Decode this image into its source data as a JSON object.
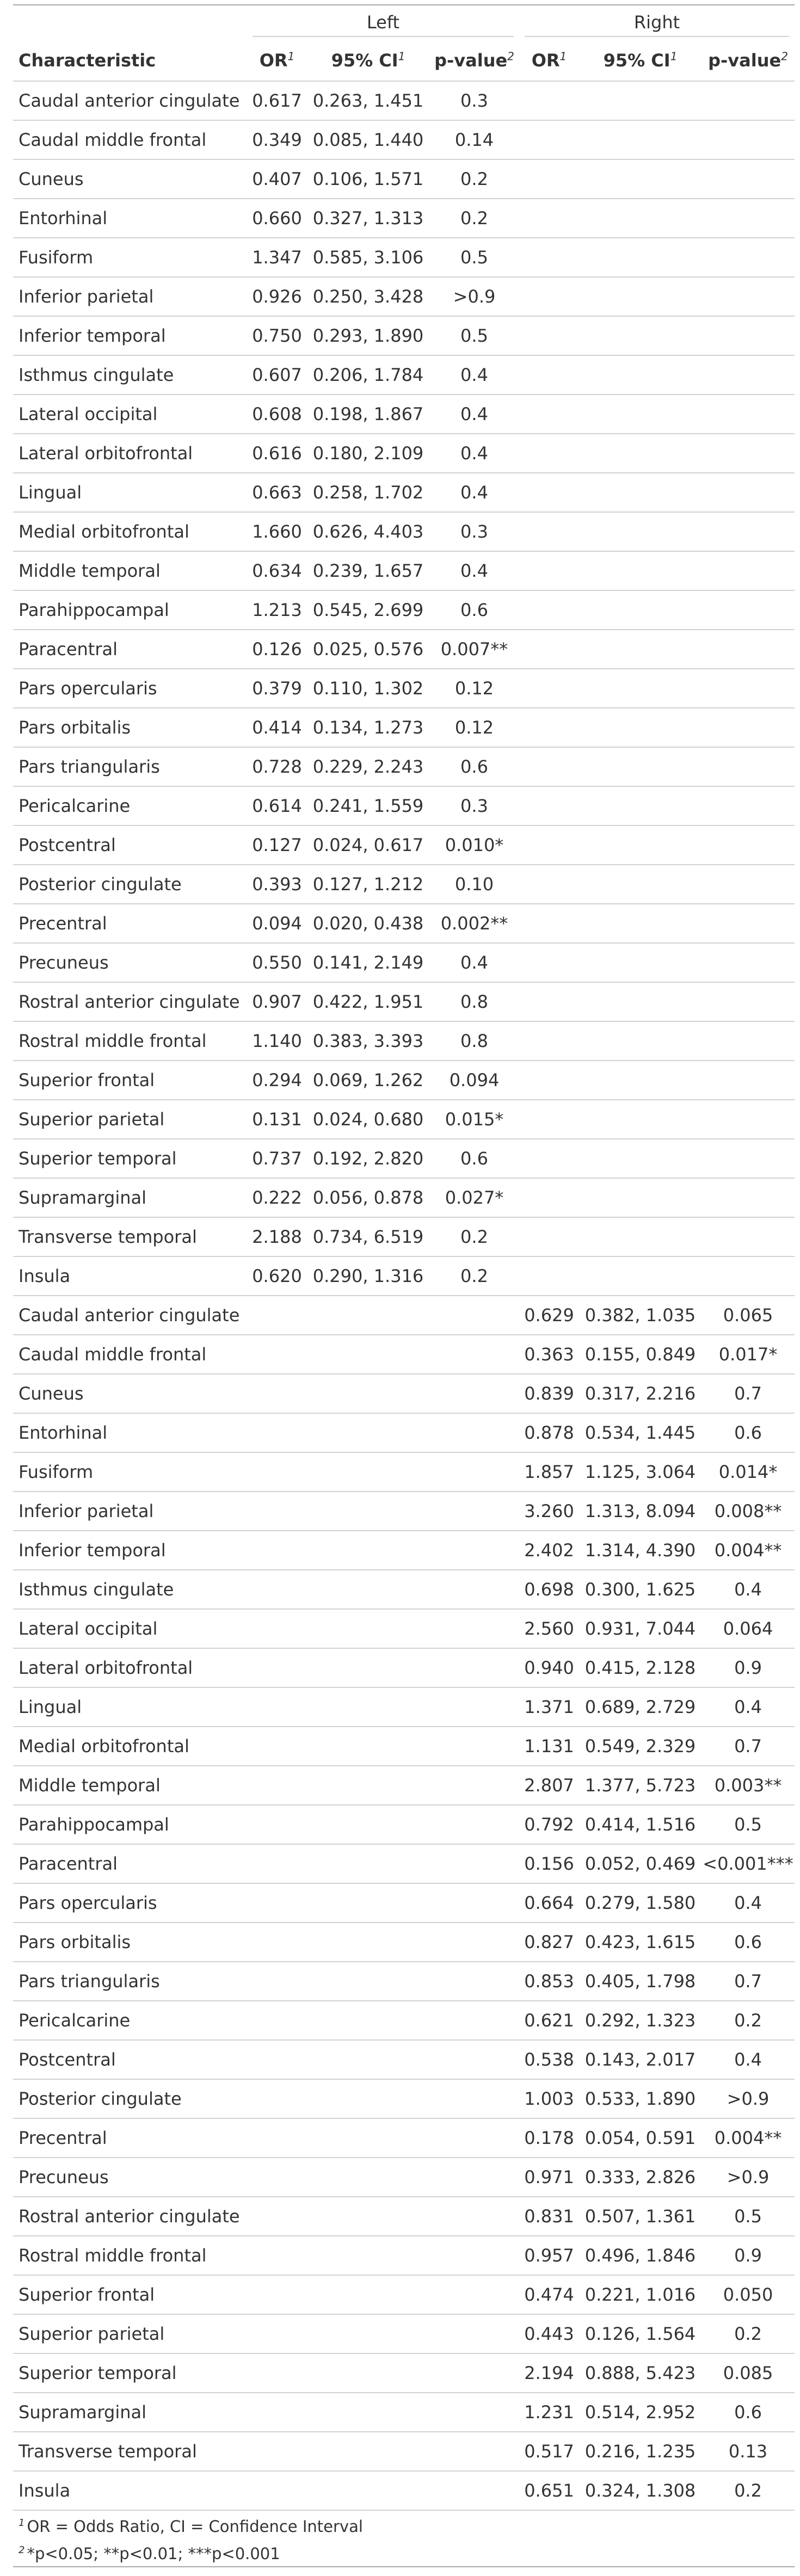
{
  "table": {
    "spanners": {
      "left": "Left",
      "right": "Right"
    },
    "headers": {
      "characteristic": "Characteristic",
      "or": "OR",
      "ci": "95% CI",
      "pvalue": "p-value",
      "or_mark": "1",
      "ci_mark": "1",
      "p_mark": "2"
    },
    "rows": [
      {
        "label": "Caudal anterior cingulate",
        "l_or": "0.617",
        "l_ci": "0.263, 1.451",
        "l_p": "0.3",
        "r_or": "",
        "r_ci": "",
        "r_p": ""
      },
      {
        "label": "Caudal middle frontal",
        "l_or": "0.349",
        "l_ci": "0.085, 1.440",
        "l_p": "0.14",
        "r_or": "",
        "r_ci": "",
        "r_p": ""
      },
      {
        "label": "Cuneus",
        "l_or": "0.407",
        "l_ci": "0.106, 1.571",
        "l_p": "0.2",
        "r_or": "",
        "r_ci": "",
        "r_p": ""
      },
      {
        "label": "Entorhinal",
        "l_or": "0.660",
        "l_ci": "0.327, 1.313",
        "l_p": "0.2",
        "r_or": "",
        "r_ci": "",
        "r_p": ""
      },
      {
        "label": "Fusiform",
        "l_or": "1.347",
        "l_ci": "0.585, 3.106",
        "l_p": "0.5",
        "r_or": "",
        "r_ci": "",
        "r_p": ""
      },
      {
        "label": "Inferior parietal",
        "l_or": "0.926",
        "l_ci": "0.250, 3.428",
        "l_p": ">0.9",
        "r_or": "",
        "r_ci": "",
        "r_p": ""
      },
      {
        "label": "Inferior temporal",
        "l_or": "0.750",
        "l_ci": "0.293, 1.890",
        "l_p": "0.5",
        "r_or": "",
        "r_ci": "",
        "r_p": ""
      },
      {
        "label": "Isthmus cingulate",
        "l_or": "0.607",
        "l_ci": "0.206, 1.784",
        "l_p": "0.4",
        "r_or": "",
        "r_ci": "",
        "r_p": ""
      },
      {
        "label": "Lateral occipital",
        "l_or": "0.608",
        "l_ci": "0.198, 1.867",
        "l_p": "0.4",
        "r_or": "",
        "r_ci": "",
        "r_p": ""
      },
      {
        "label": "Lateral orbitofrontal",
        "l_or": "0.616",
        "l_ci": "0.180, 2.109",
        "l_p": "0.4",
        "r_or": "",
        "r_ci": "",
        "r_p": ""
      },
      {
        "label": "Lingual",
        "l_or": "0.663",
        "l_ci": "0.258, 1.702",
        "l_p": "0.4",
        "r_or": "",
        "r_ci": "",
        "r_p": ""
      },
      {
        "label": "Medial orbitofrontal",
        "l_or": "1.660",
        "l_ci": "0.626, 4.403",
        "l_p": "0.3",
        "r_or": "",
        "r_ci": "",
        "r_p": ""
      },
      {
        "label": "Middle temporal",
        "l_or": "0.634",
        "l_ci": "0.239, 1.657",
        "l_p": "0.4",
        "r_or": "",
        "r_ci": "",
        "r_p": ""
      },
      {
        "label": "Parahippocampal",
        "l_or": "1.213",
        "l_ci": "0.545, 2.699",
        "l_p": "0.6",
        "r_or": "",
        "r_ci": "",
        "r_p": ""
      },
      {
        "label": "Paracentral",
        "l_or": "0.126",
        "l_ci": "0.025, 0.576",
        "l_p": "0.007**",
        "r_or": "",
        "r_ci": "",
        "r_p": ""
      },
      {
        "label": "Pars opercularis",
        "l_or": "0.379",
        "l_ci": "0.110, 1.302",
        "l_p": "0.12",
        "r_or": "",
        "r_ci": "",
        "r_p": ""
      },
      {
        "label": "Pars orbitalis",
        "l_or": "0.414",
        "l_ci": "0.134, 1.273",
        "l_p": "0.12",
        "r_or": "",
        "r_ci": "",
        "r_p": ""
      },
      {
        "label": "Pars triangularis",
        "l_or": "0.728",
        "l_ci": "0.229, 2.243",
        "l_p": "0.6",
        "r_or": "",
        "r_ci": "",
        "r_p": ""
      },
      {
        "label": "Pericalcarine",
        "l_or": "0.614",
        "l_ci": "0.241, 1.559",
        "l_p": "0.3",
        "r_or": "",
        "r_ci": "",
        "r_p": ""
      },
      {
        "label": "Postcentral",
        "l_or": "0.127",
        "l_ci": "0.024, 0.617",
        "l_p": "0.010*",
        "r_or": "",
        "r_ci": "",
        "r_p": ""
      },
      {
        "label": "Posterior cingulate",
        "l_or": "0.393",
        "l_ci": "0.127, 1.212",
        "l_p": "0.10",
        "r_or": "",
        "r_ci": "",
        "r_p": ""
      },
      {
        "label": "Precentral",
        "l_or": "0.094",
        "l_ci": "0.020, 0.438",
        "l_p": "0.002**",
        "r_or": "",
        "r_ci": "",
        "r_p": ""
      },
      {
        "label": "Precuneus",
        "l_or": "0.550",
        "l_ci": "0.141, 2.149",
        "l_p": "0.4",
        "r_or": "",
        "r_ci": "",
        "r_p": ""
      },
      {
        "label": "Rostral anterior cingulate",
        "l_or": "0.907",
        "l_ci": "0.422, 1.951",
        "l_p": "0.8",
        "r_or": "",
        "r_ci": "",
        "r_p": ""
      },
      {
        "label": "Rostral middle frontal",
        "l_or": "1.140",
        "l_ci": "0.383, 3.393",
        "l_p": "0.8",
        "r_or": "",
        "r_ci": "",
        "r_p": ""
      },
      {
        "label": "Superior frontal",
        "l_or": "0.294",
        "l_ci": "0.069, 1.262",
        "l_p": "0.094",
        "r_or": "",
        "r_ci": "",
        "r_p": ""
      },
      {
        "label": "Superior parietal",
        "l_or": "0.131",
        "l_ci": "0.024, 0.680",
        "l_p": "0.015*",
        "r_or": "",
        "r_ci": "",
        "r_p": ""
      },
      {
        "label": "Superior temporal",
        "l_or": "0.737",
        "l_ci": "0.192, 2.820",
        "l_p": "0.6",
        "r_or": "",
        "r_ci": "",
        "r_p": ""
      },
      {
        "label": "Supramarginal",
        "l_or": "0.222",
        "l_ci": "0.056, 0.878",
        "l_p": "0.027*",
        "r_or": "",
        "r_ci": "",
        "r_p": ""
      },
      {
        "label": "Transverse temporal",
        "l_or": "2.188",
        "l_ci": "0.734, 6.519",
        "l_p": "0.2",
        "r_or": "",
        "r_ci": "",
        "r_p": ""
      },
      {
        "label": "Insula",
        "l_or": "0.620",
        "l_ci": "0.290, 1.316",
        "l_p": "0.2",
        "r_or": "",
        "r_ci": "",
        "r_p": ""
      },
      {
        "label": "Caudal anterior cingulate",
        "l_or": "",
        "l_ci": "",
        "l_p": "",
        "r_or": "0.629",
        "r_ci": "0.382, 1.035",
        "r_p": "0.065"
      },
      {
        "label": "Caudal middle frontal",
        "l_or": "",
        "l_ci": "",
        "l_p": "",
        "r_or": "0.363",
        "r_ci": "0.155, 0.849",
        "r_p": "0.017*"
      },
      {
        "label": "Cuneus",
        "l_or": "",
        "l_ci": "",
        "l_p": "",
        "r_or": "0.839",
        "r_ci": "0.317, 2.216",
        "r_p": "0.7"
      },
      {
        "label": "Entorhinal",
        "l_or": "",
        "l_ci": "",
        "l_p": "",
        "r_or": "0.878",
        "r_ci": "0.534, 1.445",
        "r_p": "0.6"
      },
      {
        "label": "Fusiform",
        "l_or": "",
        "l_ci": "",
        "l_p": "",
        "r_or": "1.857",
        "r_ci": "1.125, 3.064",
        "r_p": "0.014*"
      },
      {
        "label": "Inferior parietal",
        "l_or": "",
        "l_ci": "",
        "l_p": "",
        "r_or": "3.260",
        "r_ci": "1.313, 8.094",
        "r_p": "0.008**"
      },
      {
        "label": "Inferior temporal",
        "l_or": "",
        "l_ci": "",
        "l_p": "",
        "r_or": "2.402",
        "r_ci": "1.314, 4.390",
        "r_p": "0.004**"
      },
      {
        "label": "Isthmus cingulate",
        "l_or": "",
        "l_ci": "",
        "l_p": "",
        "r_or": "0.698",
        "r_ci": "0.300, 1.625",
        "r_p": "0.4"
      },
      {
        "label": "Lateral occipital",
        "l_or": "",
        "l_ci": "",
        "l_p": "",
        "r_or": "2.560",
        "r_ci": "0.931, 7.044",
        "r_p": "0.064"
      },
      {
        "label": "Lateral orbitofrontal",
        "l_or": "",
        "l_ci": "",
        "l_p": "",
        "r_or": "0.940",
        "r_ci": "0.415, 2.128",
        "r_p": "0.9"
      },
      {
        "label": "Lingual",
        "l_or": "",
        "l_ci": "",
        "l_p": "",
        "r_or": "1.371",
        "r_ci": "0.689, 2.729",
        "r_p": "0.4"
      },
      {
        "label": "Medial orbitofrontal",
        "l_or": "",
        "l_ci": "",
        "l_p": "",
        "r_or": "1.131",
        "r_ci": "0.549, 2.329",
        "r_p": "0.7"
      },
      {
        "label": "Middle temporal",
        "l_or": "",
        "l_ci": "",
        "l_p": "",
        "r_or": "2.807",
        "r_ci": "1.377, 5.723",
        "r_p": "0.003**"
      },
      {
        "label": "Parahippocampal",
        "l_or": "",
        "l_ci": "",
        "l_p": "",
        "r_or": "0.792",
        "r_ci": "0.414, 1.516",
        "r_p": "0.5"
      },
      {
        "label": "Paracentral",
        "l_or": "",
        "l_ci": "",
        "l_p": "",
        "r_or": "0.156",
        "r_ci": "0.052, 0.469",
        "r_p": "<0.001***"
      },
      {
        "label": "Pars opercularis",
        "l_or": "",
        "l_ci": "",
        "l_p": "",
        "r_or": "0.664",
        "r_ci": "0.279, 1.580",
        "r_p": "0.4"
      },
      {
        "label": "Pars orbitalis",
        "l_or": "",
        "l_ci": "",
        "l_p": "",
        "r_or": "0.827",
        "r_ci": "0.423, 1.615",
        "r_p": "0.6"
      },
      {
        "label": "Pars triangularis",
        "l_or": "",
        "l_ci": "",
        "l_p": "",
        "r_or": "0.853",
        "r_ci": "0.405, 1.798",
        "r_p": "0.7"
      },
      {
        "label": "Pericalcarine",
        "l_or": "",
        "l_ci": "",
        "l_p": "",
        "r_or": "0.621",
        "r_ci": "0.292, 1.323",
        "r_p": "0.2"
      },
      {
        "label": "Postcentral",
        "l_or": "",
        "l_ci": "",
        "l_p": "",
        "r_or": "0.538",
        "r_ci": "0.143, 2.017",
        "r_p": "0.4"
      },
      {
        "label": "Posterior cingulate",
        "l_or": "",
        "l_ci": "",
        "l_p": "",
        "r_or": "1.003",
        "r_ci": "0.533, 1.890",
        "r_p": ">0.9"
      },
      {
        "label": "Precentral",
        "l_or": "",
        "l_ci": "",
        "l_p": "",
        "r_or": "0.178",
        "r_ci": "0.054, 0.591",
        "r_p": "0.004**"
      },
      {
        "label": "Precuneus",
        "l_or": "",
        "l_ci": "",
        "l_p": "",
        "r_or": "0.971",
        "r_ci": "0.333, 2.826",
        "r_p": ">0.9"
      },
      {
        "label": "Rostral anterior cingulate",
        "l_or": "",
        "l_ci": "",
        "l_p": "",
        "r_or": "0.831",
        "r_ci": "0.507, 1.361",
        "r_p": "0.5"
      },
      {
        "label": "Rostral middle frontal",
        "l_or": "",
        "l_ci": "",
        "l_p": "",
        "r_or": "0.957",
        "r_ci": "0.496, 1.846",
        "r_p": "0.9"
      },
      {
        "label": "Superior frontal",
        "l_or": "",
        "l_ci": "",
        "l_p": "",
        "r_or": "0.474",
        "r_ci": "0.221, 1.016",
        "r_p": "0.050"
      },
      {
        "label": "Superior parietal",
        "l_or": "",
        "l_ci": "",
        "l_p": "",
        "r_or": "0.443",
        "r_ci": "0.126, 1.564",
        "r_p": "0.2"
      },
      {
        "label": "Superior temporal",
        "l_or": "",
        "l_ci": "",
        "l_p": "",
        "r_or": "2.194",
        "r_ci": "0.888, 5.423",
        "r_p": "0.085"
      },
      {
        "label": "Supramarginal",
        "l_or": "",
        "l_ci": "",
        "l_p": "",
        "r_or": "1.231",
        "r_ci": "0.514, 2.952",
        "r_p": "0.6"
      },
      {
        "label": "Transverse temporal",
        "l_or": "",
        "l_ci": "",
        "l_p": "",
        "r_or": "0.517",
        "r_ci": "0.216, 1.235",
        "r_p": "0.13"
      },
      {
        "label": "Insula",
        "l_or": "",
        "l_ci": "",
        "l_p": "",
        "r_or": "0.651",
        "r_ci": "0.324, 1.308",
        "r_p": "0.2"
      }
    ]
  },
  "footnotes": [
    {
      "mark": "1",
      "text": "OR = Odds Ratio, CI = Confidence Interval"
    },
    {
      "mark": "2",
      "text": "*p<0.05; **p<0.01; ***p<0.001"
    }
  ]
}
